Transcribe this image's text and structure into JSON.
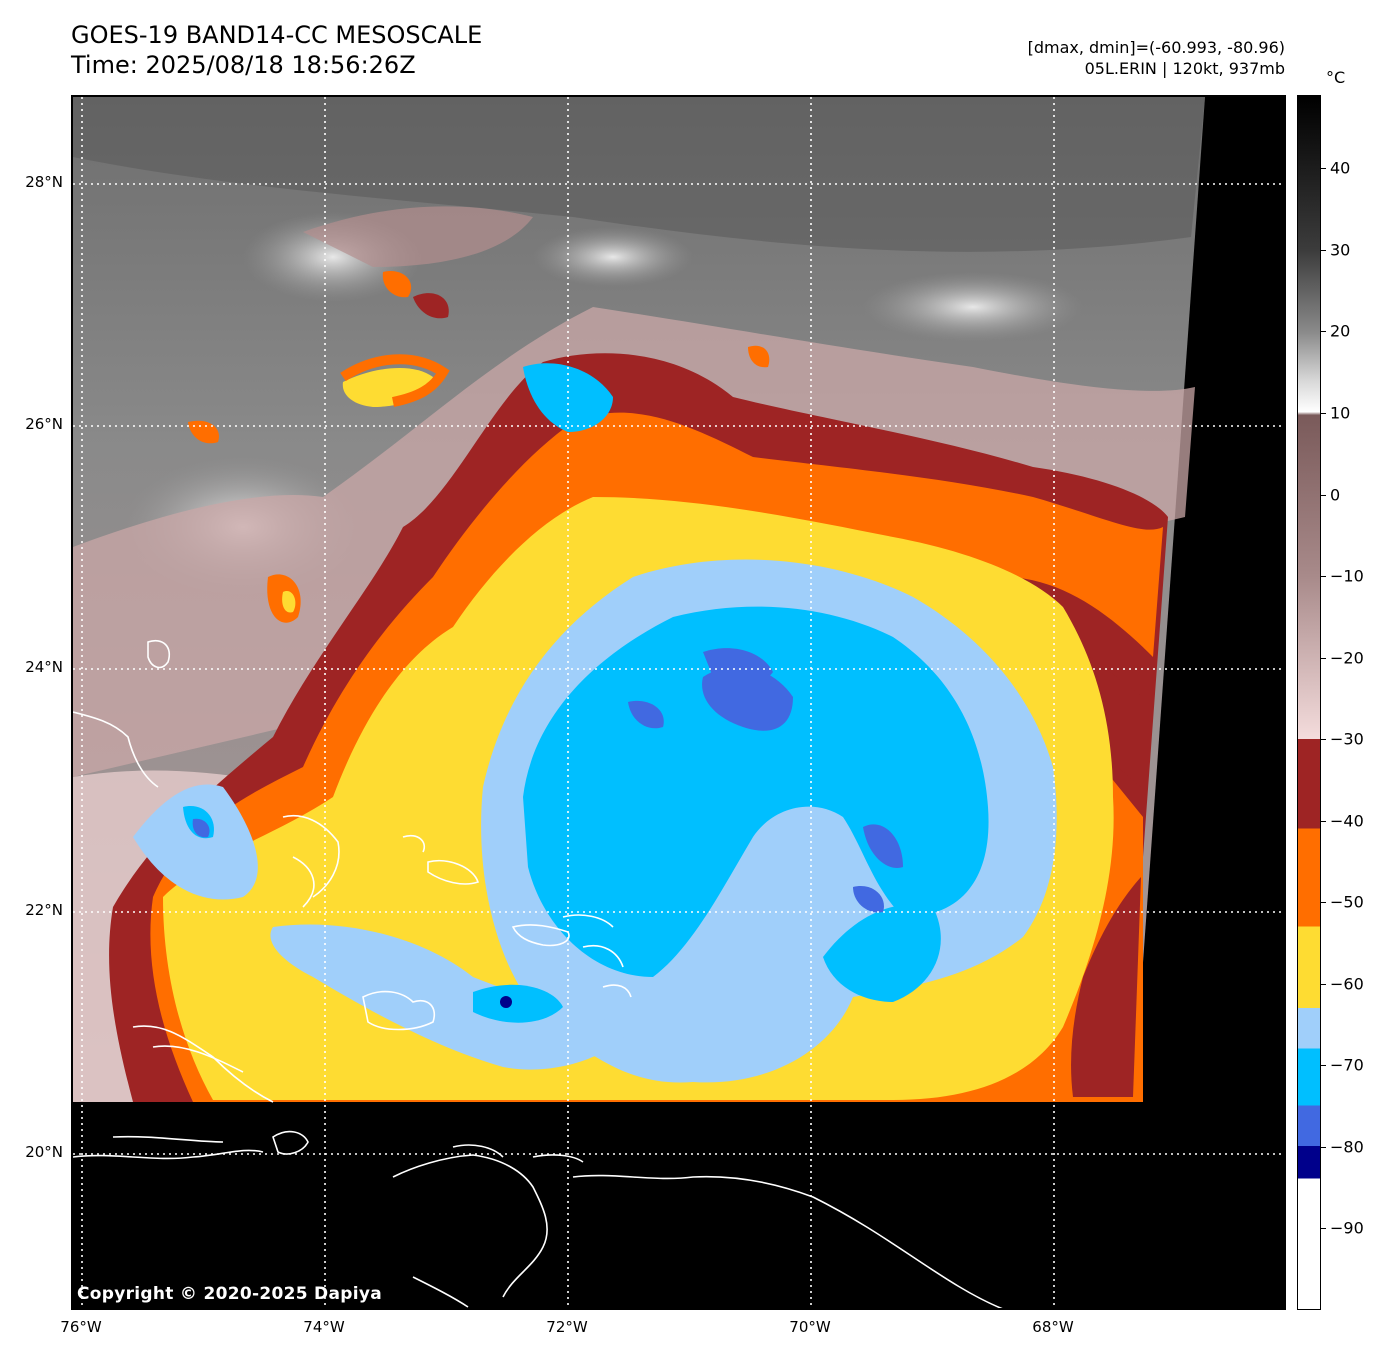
{
  "header": {
    "title_line1": "GOES-19 BAND14-CC MESOSCALE",
    "title_line2": "Time: 2025/08/18 18:56:26Z",
    "range_text": "[dmax, dmin]=(-60.993, -80.96)",
    "storm_text": "05L.ERIN | 120kt, 937mb"
  },
  "map": {
    "lat_labels": [
      "28°N",
      "26°N",
      "24°N",
      "22°N",
      "20°N"
    ],
    "lon_labels": [
      "76°W",
      "74°W",
      "72°W",
      "70°W",
      "68°W"
    ],
    "copyright": "Copyright © 2020-2025 Dapiya",
    "storm": {
      "name": "05L.ERIN",
      "center_lat": 23.9,
      "center_lon": -70.8,
      "min_brightness_temp_c": -80.96,
      "max_brightness_temp_c": -60.993
    }
  },
  "colorbar": {
    "unit": "°C",
    "tick_labels": [
      "40",
      "30",
      "20",
      "10",
      "0",
      "−10",
      "−20",
      "−30",
      "−40",
      "−50",
      "−60",
      "−70",
      "−80",
      "−90"
    ],
    "colors": {
      "warm_top": "#000000",
      "gray_mid": "#8a8a8a",
      "near_white": "#ffffff",
      "brown_top": "#7a5a5a",
      "pink_light": "#f4dcdc",
      "dark_red": "#9e2424",
      "orange": "#ff6e00",
      "yellow": "#fedc32",
      "light_blue": "#a0cffa",
      "cyan": "#00bfff",
      "royal_blue": "#4169e1",
      "navy": "#00008b",
      "white": "#ffffff"
    }
  }
}
